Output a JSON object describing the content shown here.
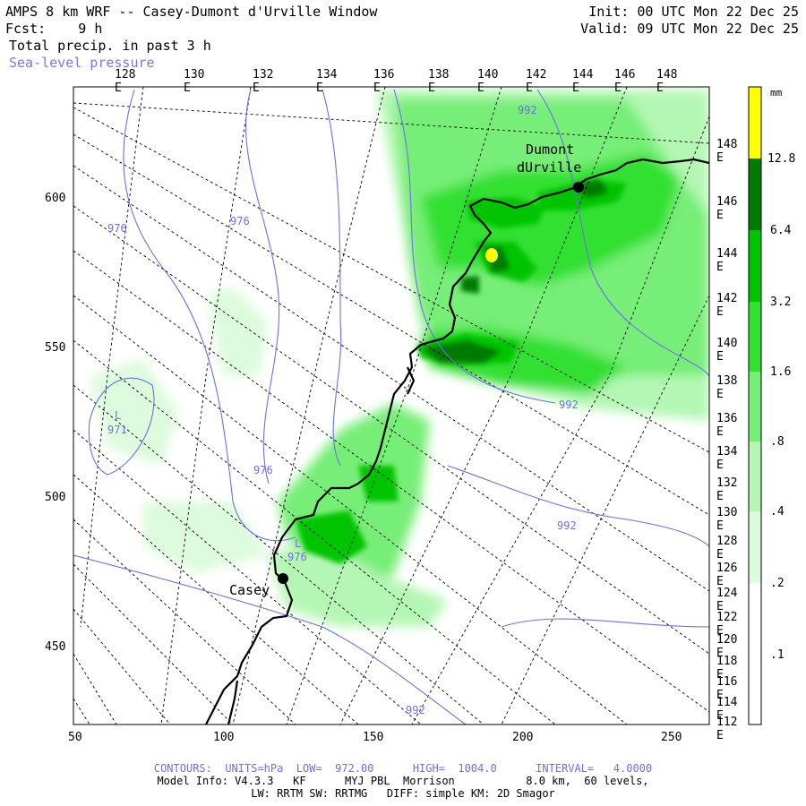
{
  "header": {
    "model_title": "AMPS 8 km WRF -- Casey-Dumont d'Urville Window",
    "forecast_line": "Fcst:    9 h",
    "field_title": "Total precip. in past 3 h",
    "overlay_title": "Sea-level pressure",
    "init_time": "Init: 00 UTC Mon 22 Dec 25",
    "valid_time": "Valid: 09 UTC Mon 22 Dec 25"
  },
  "map": {
    "top_lon_labels": [
      "128 E",
      "130 E",
      "132 E",
      "134 E",
      "136 E",
      "138 E",
      "140 E",
      "142 E",
      "144 E",
      "146 E",
      "148 E"
    ],
    "right_lon_labels": [
      "148 E",
      "146 E",
      "144 E",
      "142 E",
      "140 E",
      "138 E",
      "136 E",
      "134 E",
      "132 E",
      "130 E",
      "128 E",
      "126 E",
      "124 E",
      "122 E",
      "120 E",
      "118 E",
      "116 E",
      "114 E",
      "112 E"
    ],
    "x_ticks": [
      "50",
      "100",
      "150",
      "200",
      "250"
    ],
    "y_ticks": [
      "600",
      "550",
      "500",
      "450"
    ],
    "stations": [
      {
        "name_line1": "Dumont",
        "name_line2": "dUrville"
      },
      {
        "name_line1": "Casey",
        "name_line2": ""
      }
    ],
    "pressure_labels": [
      "992",
      "976",
      "976",
      "L",
      "971",
      "976",
      "L",
      "976",
      "992",
      "992",
      "992"
    ]
  },
  "colorbar": {
    "unit": "mm",
    "levels": [
      "12.8",
      "6.4",
      "3.2",
      "1.6",
      ".8",
      ".4",
      ".2",
      ".1"
    ],
    "colors": [
      "#ffff00",
      "#007a00",
      "#00c400",
      "#33e033",
      "#77ee77",
      "#b4f7b4",
      "#ddfbdd",
      "#ffffff"
    ]
  },
  "footer": {
    "contours": "CONTOURS:  UNITS=hPa  LOW=  972.00      HIGH=  1004.0      INTERVAL=   4.0000",
    "model_info": "Model Info: V4.3.3   KF      MYJ PBL  Morrison           8.0 km,  60 levels,",
    "physics": "LW: RRTM SW: RRTMG   DIFF: simple KM: 2D Smagor"
  }
}
